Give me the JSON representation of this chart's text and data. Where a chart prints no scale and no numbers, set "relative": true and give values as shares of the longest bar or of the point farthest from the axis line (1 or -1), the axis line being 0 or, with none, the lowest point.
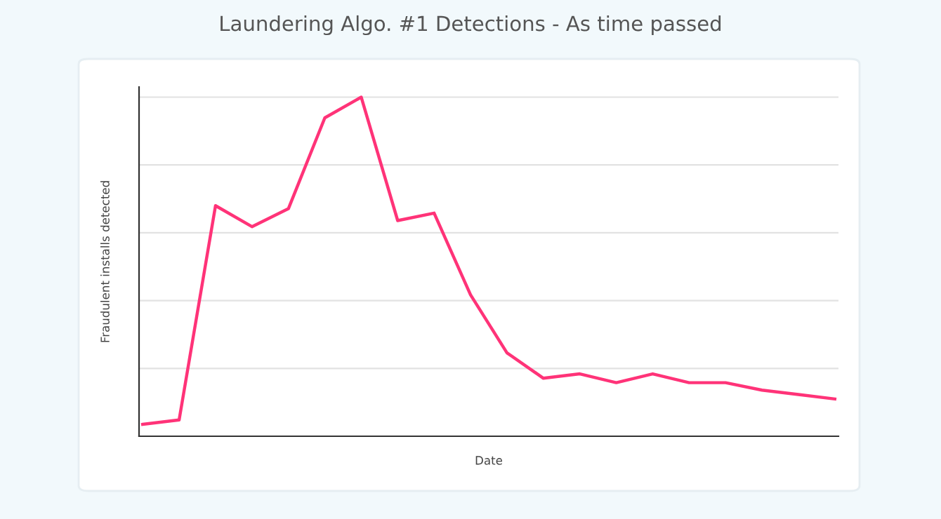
{
  "chart_data": {
    "type": "line",
    "title": "Laundering Algo. #1 Detections - As time passed",
    "xlabel": "Date",
    "ylabel": "Fraudulent installs detected",
    "relative": true,
    "grid": "y",
    "tick_labels": false,
    "marker": "none",
    "line_style": "solid",
    "categories": [
      null,
      null,
      null,
      null,
      null,
      null,
      null,
      null,
      null,
      null,
      null,
      null,
      null,
      null,
      null,
      null,
      null,
      null,
      null,
      null
    ],
    "series": [
      {
        "color": "#ff3378",
        "values": [
          0.035,
          0.048,
          0.68,
          0.618,
          0.671,
          0.939,
          1,
          0.636,
          0.658,
          0.417,
          0.246,
          0.171,
          0.184,
          0.158,
          0.184,
          0.158,
          0.158,
          0.136,
          0.123,
          0.11
        ]
      }
    ]
  }
}
